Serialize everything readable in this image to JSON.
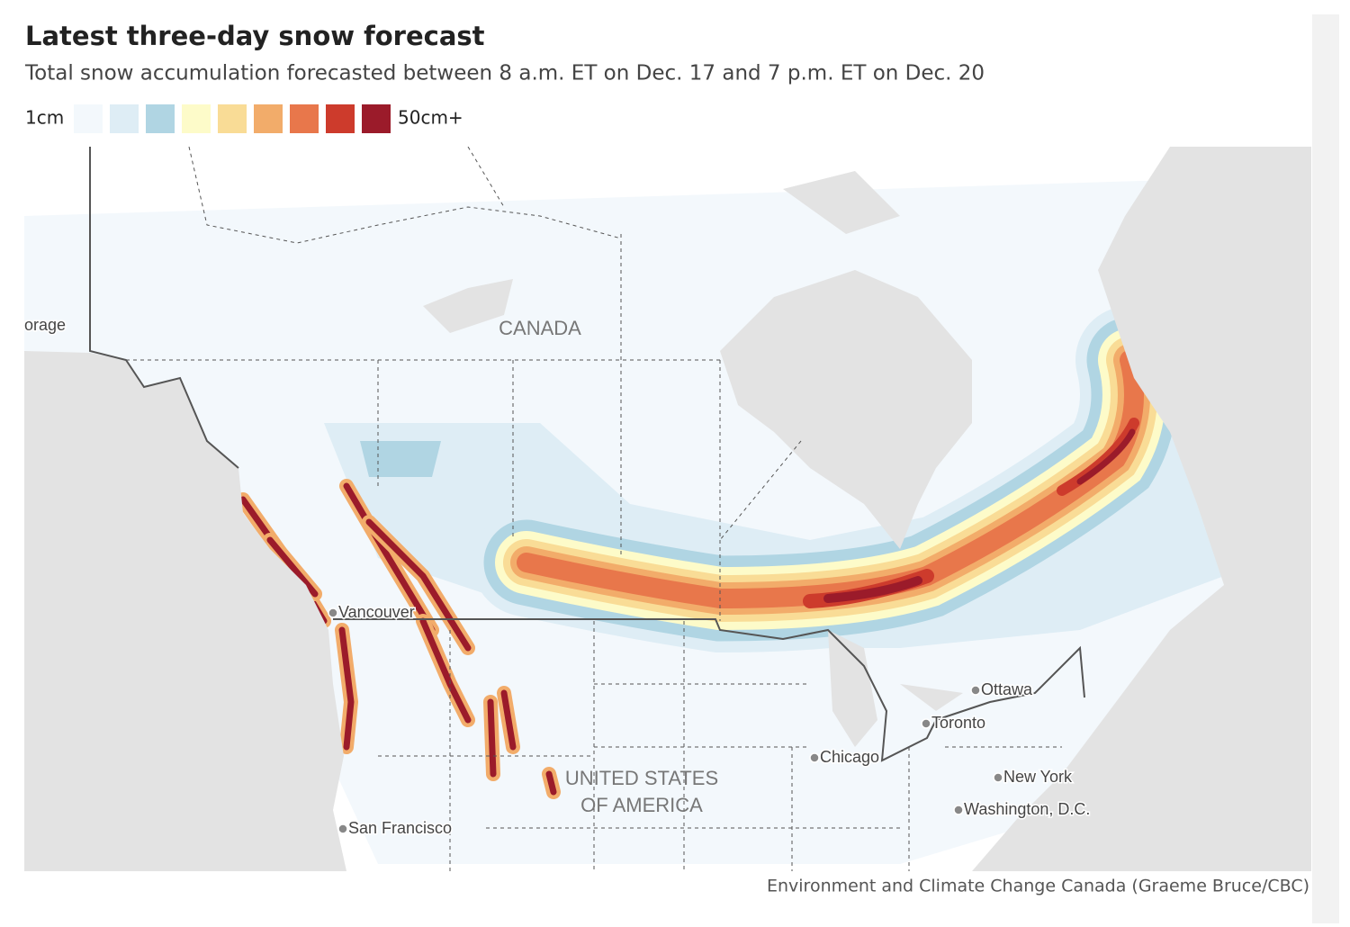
{
  "header": {
    "title": "Latest three-day snow forecast",
    "subtitle": "Total snow accumulation forecasted between 8 a.m. ET on Dec. 17 and 7 p.m. ET on Dec. 20"
  },
  "legend": {
    "min_label": "1cm",
    "max_label": "50cm+",
    "colors": [
      "#f3f8fc",
      "#deedf5",
      "#b0d5e3",
      "#fdfbc9",
      "#f9dc96",
      "#f2ac6a",
      "#e8774b",
      "#cd3b2c",
      "#9b1b2a"
    ]
  },
  "map": {
    "countries": [
      "CANADA",
      "UNITED STATES",
      "OF AMERICA"
    ],
    "places": [
      "orage",
      "Vancouver",
      "Ottawa",
      "Toronto",
      "Chicago",
      "New York",
      "Washington, D.C.",
      "San Francisco"
    ]
  },
  "credit": "Environment and Climate Change Canada (Graeme Bruce/CBC)"
}
